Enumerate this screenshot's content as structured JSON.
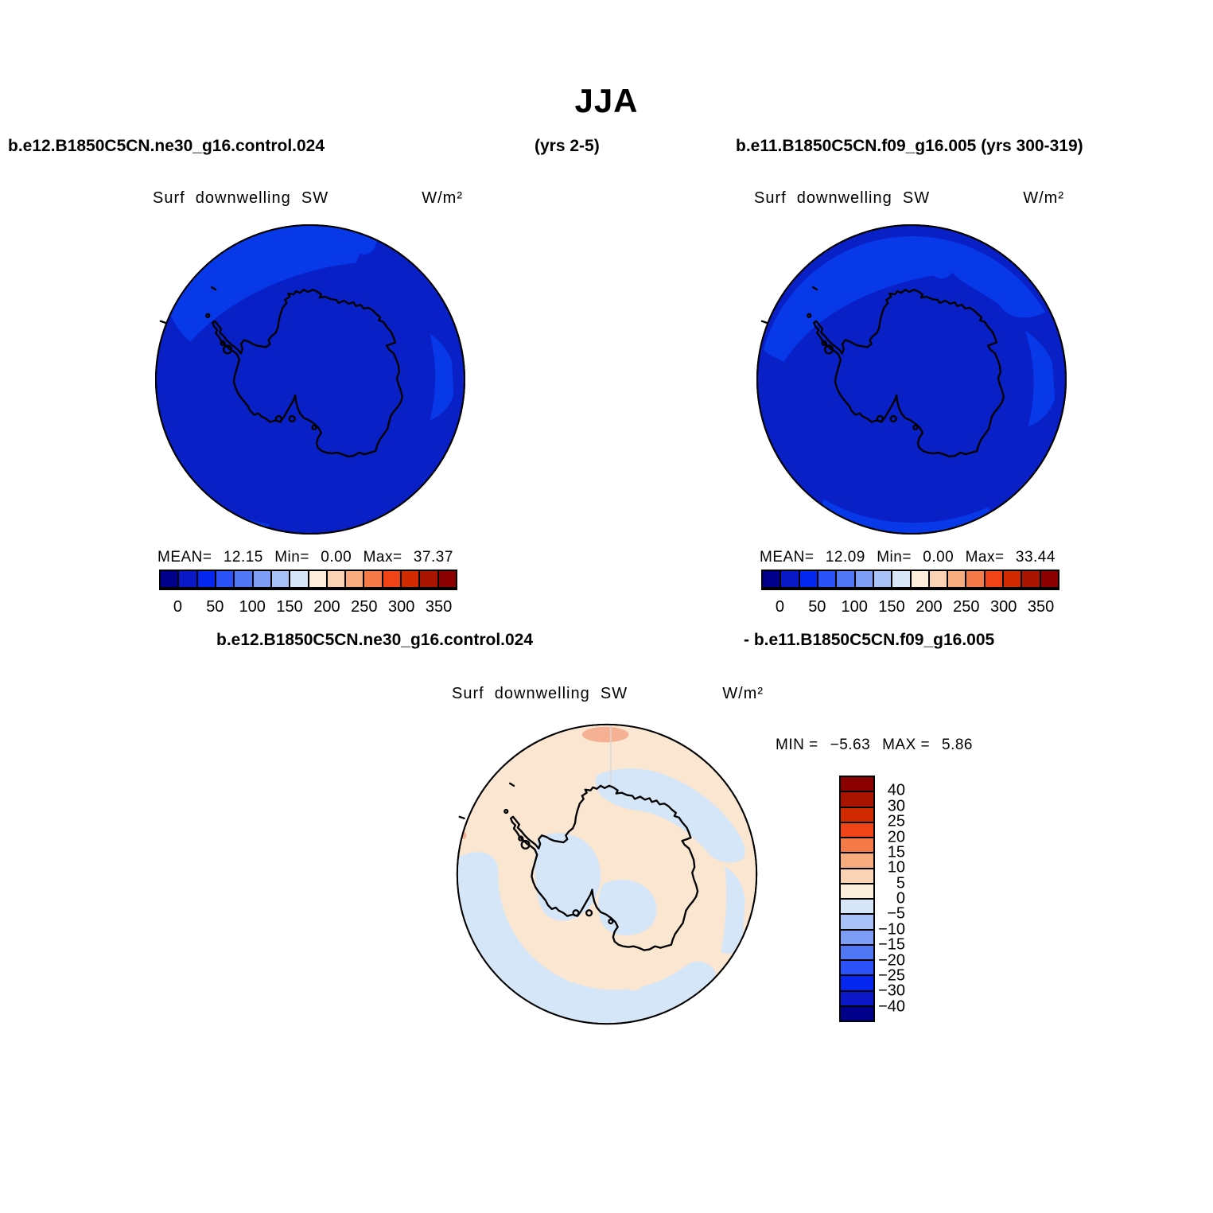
{
  "page": {
    "title": "JJA"
  },
  "header": {
    "left_case": "b.e12.B1850C5CN.ne30_g16.control.024",
    "left_years": "(yrs 2-5)",
    "right_case": "b.e11.B1850C5CN.f09_g16.005 (yrs 300-319)"
  },
  "panels": {
    "left": {
      "title": "Surf  downwelling  SW",
      "units": "W/m²",
      "stats": {
        "mean_label": "MEAN=",
        "mean": "12.15",
        "min_label": "Min=",
        "min": "0.00",
        "max_label": "Max=",
        "max": "37.37"
      },
      "colorbar": {
        "ticks": [
          "0",
          "50",
          "100",
          "150",
          "200",
          "250",
          "300",
          "350"
        ]
      }
    },
    "right": {
      "title": "Surf  downwelling  SW",
      "units": "W/m²",
      "stats": {
        "mean_label": "MEAN=",
        "mean": "12.09",
        "min_label": "Min=",
        "min": "0.00",
        "max_label": "Max=",
        "max": "33.44"
      },
      "colorbar": {
        "ticks": [
          "0",
          "50",
          "100",
          "150",
          "200",
          "250",
          "300",
          "350"
        ]
      }
    },
    "diff": {
      "case_left": "b.e12.B1850C5CN.ne30_g16.control.024",
      "case_right": "- b.e11.B1850C5CN.f09_g16.005",
      "title": "Surf  downwelling  SW",
      "units": "W/m²",
      "stats": {
        "min_label": "MIN =",
        "min": "−5.63",
        "max_label": "MAX =",
        "max": "5.86"
      },
      "colorbar": {
        "ticks": [
          "40",
          "30",
          "25",
          "20",
          "15",
          "10",
          "5",
          "0",
          "−5",
          "−10",
          "−15",
          "−20",
          "−25",
          "−30",
          "−40"
        ]
      }
    }
  },
  "colors": {
    "palette16": [
      "#00008B",
      "#0A18C8",
      "#0426EE",
      "#2A52F8",
      "#5078F4",
      "#7E9EF6",
      "#A8C2F8",
      "#D8E6FA",
      "#FCEEDB",
      "#FAD2B4",
      "#F7AC80",
      "#F47A4A",
      "#EE4418",
      "#D12A00",
      "#A81400",
      "#8B0000"
    ],
    "map_main_blue": "#0820C6",
    "map_band_blue": "#0739E8",
    "diff_cream": "#FAE6D1",
    "diff_blue": "#D4E6F7",
    "diff_salmon": "#F6B093"
  },
  "chart_data": {
    "type": "heatmap",
    "title": "JJA",
    "variable": "Surf downwelling SW",
    "units": "W/m²",
    "projection": "south polar stereographic (Antarctica)",
    "legend_position": "horizontal below top panels; vertical right of difference panel",
    "panels": [
      {
        "name": "b.e12.B1850C5CN.ne30_g16.control.024",
        "years": "yrs 2-5",
        "mean": 12.15,
        "min": 0.0,
        "max": 37.37,
        "levels": [
          0,
          25,
          50,
          75,
          100,
          125,
          150,
          175,
          200,
          225,
          250,
          275,
          300,
          325,
          350
        ],
        "tick_labels": [
          0,
          50,
          100,
          150,
          200,
          250,
          300,
          350
        ]
      },
      {
        "name": "b.e11.B1850C5CN.f09_g16.005",
        "years": "yrs 300-319",
        "mean": 12.09,
        "min": 0.0,
        "max": 33.44,
        "levels": [
          0,
          25,
          50,
          75,
          100,
          125,
          150,
          175,
          200,
          225,
          250,
          275,
          300,
          325,
          350
        ],
        "tick_labels": [
          0,
          50,
          100,
          150,
          200,
          250,
          300,
          350
        ]
      },
      {
        "name": "difference: b.e12.B1850C5CN.ne30_g16.control.024 - b.e11.B1850C5CN.f09_g16.005",
        "min": -5.63,
        "max": 5.86,
        "levels": [
          -40,
          -30,
          -25,
          -20,
          -15,
          -10,
          -5,
          0,
          5,
          10,
          15,
          20,
          25,
          30,
          40
        ]
      }
    ]
  }
}
